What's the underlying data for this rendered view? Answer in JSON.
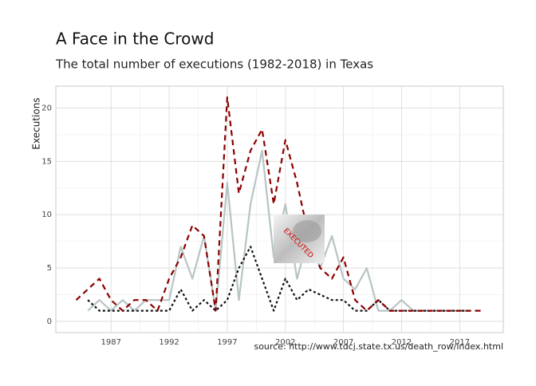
{
  "chart_data": {
    "type": "line",
    "title": "A Face in the Crowd",
    "subtitle": "The total number of executions (1982-2018) in Texas",
    "y_label": "Executions",
    "caption": "source: http://www.tdcj.state.tx.us/death_row/index.html",
    "image_label": "EXECUTED",
    "x": [
      1984,
      1985,
      1986,
      1987,
      1988,
      1989,
      1990,
      1991,
      1992,
      1993,
      1994,
      1995,
      1996,
      1997,
      1998,
      1999,
      2000,
      2001,
      2002,
      2003,
      2004,
      2005,
      2006,
      2007,
      2008,
      2009,
      2010,
      2011,
      2012,
      2013,
      2014,
      2015,
      2016,
      2017,
      2018,
      2019
    ],
    "series": [
      {
        "color": "#b8c4c4",
        "dash": "solid",
        "values": [
          null,
          1,
          2,
          1,
          2,
          1,
          2,
          2,
          2,
          7,
          4,
          8,
          1,
          13,
          2,
          11,
          16,
          6,
          11,
          4,
          8,
          5,
          8,
          4,
          3,
          5,
          1,
          1,
          2,
          1,
          1,
          1,
          1,
          1,
          1,
          null
        ]
      },
      {
        "color": "#111111",
        "dash": "dotted",
        "values": [
          null,
          2,
          1,
          1,
          1,
          1,
          1,
          1,
          1,
          3,
          1,
          2,
          1,
          2,
          5,
          7,
          4,
          1,
          4,
          2,
          3,
          2.5,
          2,
          2,
          1,
          1,
          2,
          1,
          1,
          1,
          1,
          1,
          1,
          1,
          1,
          null
        ]
      },
      {
        "color": "#8b0000",
        "dash": "dashed",
        "values": [
          2,
          3,
          4,
          2,
          1,
          2,
          2,
          1,
          4,
          6,
          9,
          8,
          1,
          21,
          12,
          16,
          18,
          11,
          17,
          13,
          8,
          5,
          4,
          6,
          2,
          1,
          2,
          1,
          1,
          1,
          1,
          1,
          1,
          1,
          1,
          1
        ]
      }
    ],
    "xlim": [
      1982.25,
      2020.75
    ],
    "ylim": [
      -1.05,
      22.05
    ],
    "xticks": [
      1987,
      1992,
      1997,
      2002,
      2007,
      2012,
      2017
    ],
    "yticks": [
      0,
      5,
      10,
      15,
      20
    ],
    "grid": true
  }
}
